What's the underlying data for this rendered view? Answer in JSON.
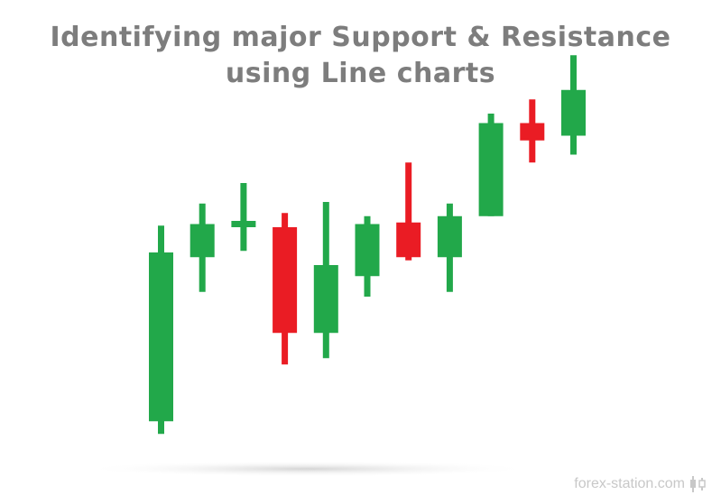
{
  "title": {
    "line1": "Identifying major Support & Resistance",
    "line2": "using Line charts"
  },
  "watermark": {
    "text": "forex-station.com",
    "icon": "candlestick-logo-icon"
  },
  "colors": {
    "bullish": "#22a84a",
    "bearish": "#ea1c24",
    "title": "#7d7d7d",
    "shadow": "#d9d9d9",
    "watermark": "#c8c8c8"
  },
  "chart_data": {
    "type": "candlestick",
    "title": "Identifying major Support & Resistance using Line charts",
    "xlabel": "",
    "ylabel": "",
    "grid": false,
    "axes_visible": false,
    "ylim": [
      0,
      100
    ],
    "candles": [
      {
        "open": 16.5,
        "high": 78.5,
        "low": 12.5,
        "close": 70.0,
        "direction": "up"
      },
      {
        "open": 68.5,
        "high": 85.5,
        "low": 57.5,
        "close": 79.0,
        "direction": "up"
      },
      {
        "open": 78.0,
        "high": 92.0,
        "low": 70.5,
        "close": 80.0,
        "direction": "up"
      },
      {
        "open": 78.0,
        "high": 82.5,
        "low": 34.5,
        "close": 44.5,
        "direction": "down"
      },
      {
        "open": 44.5,
        "high": 86.0,
        "low": 36.5,
        "close": 66.0,
        "direction": "up"
      },
      {
        "open": 62.5,
        "high": 81.5,
        "low": 56.0,
        "close": 79.0,
        "direction": "up"
      },
      {
        "open": 79.5,
        "high": 98.5,
        "low": 67.5,
        "close": 68.5,
        "direction": "down"
      },
      {
        "open": 68.5,
        "high": 85.5,
        "low": 57.5,
        "close": 81.5,
        "direction": "up"
      },
      {
        "open": 81.5,
        "high": 114.0,
        "low": 81.5,
        "close": 111.0,
        "direction": "up"
      },
      {
        "open": 111.0,
        "high": 118.5,
        "low": 98.5,
        "close": 105.5,
        "direction": "down"
      },
      {
        "open": 107.0,
        "high": 132.5,
        "low": 101.0,
        "close": 121.5,
        "direction": "up"
      }
    ]
  }
}
